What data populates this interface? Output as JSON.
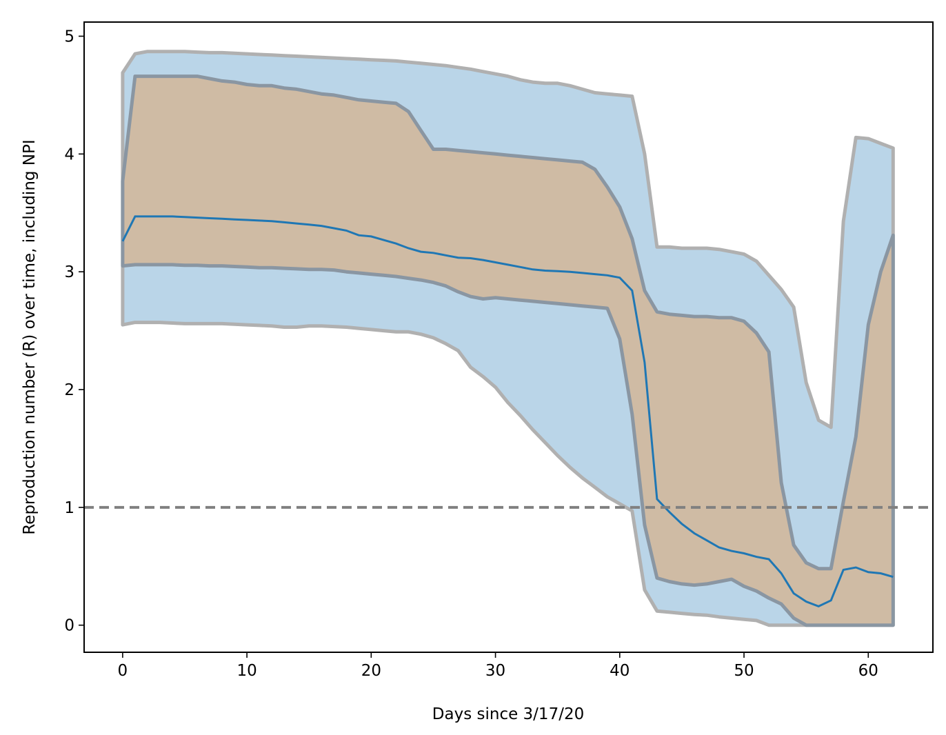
{
  "chart_data": {
    "type": "band-line",
    "xlabel": "Days since 3/17/20",
    "ylabel": "Reproduction number (R) over time, including NPI",
    "x": [
      0,
      1,
      2,
      3,
      4,
      5,
      6,
      7,
      8,
      9,
      10,
      11,
      12,
      13,
      14,
      15,
      16,
      17,
      18,
      19,
      20,
      21,
      22,
      23,
      24,
      25,
      26,
      27,
      28,
      29,
      30,
      31,
      32,
      33,
      34,
      35,
      36,
      37,
      38,
      39,
      40,
      41,
      42,
      43,
      44,
      45,
      46,
      47,
      48,
      49,
      50,
      51,
      52,
      53,
      54,
      55,
      56,
      57,
      58,
      59,
      60,
      61,
      62
    ],
    "bands": [
      {
        "fill": "#bad5e8",
        "edge": "#b0b0b0",
        "upper": [
          4.69,
          4.85,
          4.87,
          4.87,
          4.87,
          4.87,
          4.865,
          4.86,
          4.86,
          4.855,
          4.85,
          4.845,
          4.84,
          4.835,
          4.83,
          4.825,
          4.82,
          4.815,
          4.81,
          4.805,
          4.8,
          4.795,
          4.79,
          4.78,
          4.77,
          4.76,
          4.75,
          4.735,
          4.72,
          4.7,
          4.68,
          4.66,
          4.63,
          4.61,
          4.6,
          4.6,
          4.58,
          4.55,
          4.52,
          4.51,
          4.5,
          4.49,
          4.0,
          3.21,
          3.21,
          3.2,
          3.2,
          3.2,
          3.19,
          3.17,
          3.15,
          3.09,
          2.97,
          2.85,
          2.7,
          2.06,
          1.74,
          1.68,
          3.43,
          4.14,
          4.13,
          4.09,
          4.05
        ],
        "lower": [
          2.55,
          2.57,
          2.57,
          2.57,
          2.565,
          2.56,
          2.56,
          2.56,
          2.56,
          2.555,
          2.55,
          2.545,
          2.54,
          2.53,
          2.53,
          2.54,
          2.54,
          2.535,
          2.53,
          2.52,
          2.51,
          2.5,
          2.49,
          2.49,
          2.47,
          2.44,
          2.39,
          2.33,
          2.19,
          2.11,
          2.02,
          1.89,
          1.78,
          1.66,
          1.55,
          1.44,
          1.34,
          1.25,
          1.17,
          1.09,
          1.03,
          0.97,
          0.3,
          0.12,
          0.11,
          0.1,
          0.09,
          0.085,
          0.07,
          0.06,
          0.05,
          0.04,
          0,
          0,
          0,
          0,
          0,
          0,
          0,
          0,
          0,
          0,
          0
        ]
      },
      {
        "fill": "#cfbba4",
        "edge": "#8a96a2",
        "upper": [
          3.77,
          4.66,
          4.66,
          4.66,
          4.66,
          4.66,
          4.66,
          4.64,
          4.62,
          4.61,
          4.59,
          4.58,
          4.58,
          4.56,
          4.55,
          4.53,
          4.51,
          4.5,
          4.48,
          4.46,
          4.45,
          4.44,
          4.43,
          4.36,
          4.2,
          4.04,
          4.04,
          4.03,
          4.02,
          4.01,
          4.0,
          3.99,
          3.98,
          3.97,
          3.96,
          3.95,
          3.94,
          3.93,
          3.87,
          3.72,
          3.55,
          3.28,
          2.84,
          2.66,
          2.64,
          2.63,
          2.62,
          2.62,
          2.61,
          2.61,
          2.58,
          2.48,
          2.32,
          1.21,
          0.68,
          0.53,
          0.48,
          0.48,
          1.05,
          1.6,
          2.55,
          3.0,
          3.31
        ],
        "lower": [
          3.05,
          3.06,
          3.06,
          3.06,
          3.06,
          3.055,
          3.055,
          3.05,
          3.05,
          3.045,
          3.04,
          3.035,
          3.035,
          3.03,
          3.025,
          3.02,
          3.02,
          3.015,
          3.0,
          2.99,
          2.98,
          2.97,
          2.96,
          2.945,
          2.93,
          2.91,
          2.88,
          2.83,
          2.79,
          2.77,
          2.78,
          2.77,
          2.76,
          2.75,
          2.74,
          2.73,
          2.72,
          2.71,
          2.7,
          2.69,
          2.43,
          1.79,
          0.85,
          0.4,
          0.37,
          0.35,
          0.34,
          0.35,
          0.37,
          0.39,
          0.33,
          0.29,
          0.23,
          0.18,
          0.06,
          0,
          0,
          0,
          0,
          0,
          0,
          0,
          0
        ]
      }
    ],
    "series": [
      {
        "color": "#1f77b4",
        "values": [
          3.26,
          3.47,
          3.47,
          3.47,
          3.47,
          3.465,
          3.46,
          3.455,
          3.45,
          3.445,
          3.44,
          3.435,
          3.43,
          3.42,
          3.41,
          3.4,
          3.39,
          3.37,
          3.35,
          3.31,
          3.3,
          3.27,
          3.24,
          3.2,
          3.17,
          3.16,
          3.14,
          3.12,
          3.115,
          3.1,
          3.08,
          3.06,
          3.04,
          3.02,
          3.01,
          3.005,
          3.0,
          2.99,
          2.98,
          2.97,
          2.95,
          2.84,
          2.23,
          1.07,
          0.96,
          0.86,
          0.78,
          0.72,
          0.66,
          0.63,
          0.61,
          0.58,
          0.56,
          0.44,
          0.27,
          0.2,
          0.16,
          0.21,
          0.47,
          0.49,
          0.45,
          0.44,
          0.41
        ]
      }
    ],
    "hline": {
      "y": 1,
      "color": "#808080"
    },
    "xlim": [
      -3.1,
      65.2
    ],
    "ylim": [
      -0.23,
      5.12
    ],
    "xticks": [
      0,
      10,
      20,
      30,
      40,
      50,
      60
    ],
    "yticks": [
      0,
      1,
      2,
      3,
      4,
      5
    ]
  }
}
